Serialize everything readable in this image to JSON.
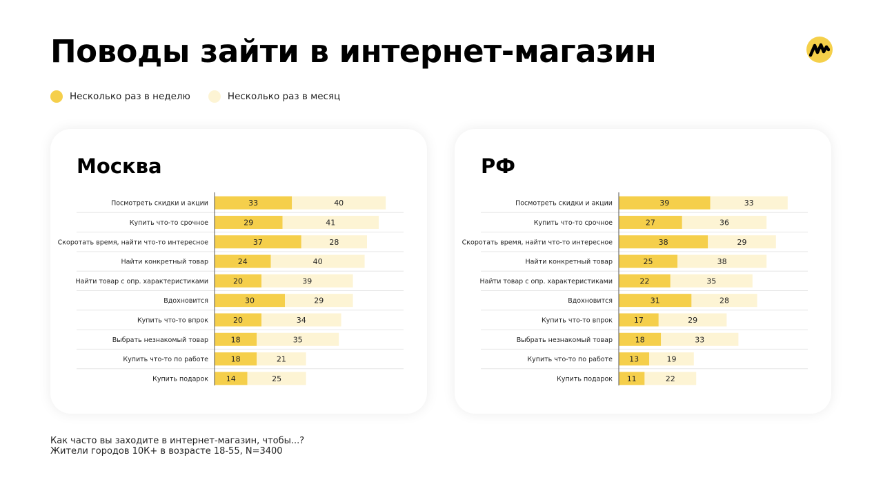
{
  "page": {
    "title": "Поводы зайти в интернет-магазин",
    "logo": "yandex-market-logo"
  },
  "colors": {
    "weekly": "#f5cf4b",
    "monthly": "#fdf4d4",
    "logo_bg": "#f5d04a"
  },
  "legend": [
    {
      "label": "Несколько раз в неделю",
      "color": "#f5cf4b"
    },
    {
      "label": "Несколько раз в месяц",
      "color": "#fdf4d4"
    }
  ],
  "footnote": {
    "line1": "Как часто вы заходите в интернет-магазин, чтобы...?",
    "line2": "Жители городов 10К+ в возрасте 18-55, N=3400"
  },
  "chart_data": [
    {
      "type": "bar",
      "orientation": "horizontal",
      "stacked": true,
      "title": "Москва",
      "unit": "%",
      "categories": [
        "Посмотреть скидки и акции",
        "Купить что-то срочное",
        "Скоротать время, найти что-то интересное",
        "Найти конкретный товар",
        "Найти товар с опр. характеристиками",
        "Вдохновится",
        "Купить что-то впрок",
        "Выбрать незнакомый товар",
        "Купить что-то по работе",
        "Купить подарок"
      ],
      "series": [
        {
          "name": "Несколько раз в неделю",
          "values": [
            33,
            29,
            37,
            24,
            20,
            30,
            20,
            18,
            18,
            14
          ]
        },
        {
          "name": "Несколько раз в месяц",
          "values": [
            40,
            41,
            28,
            40,
            39,
            29,
            34,
            35,
            21,
            25
          ]
        }
      ],
      "xlim": [
        0,
        80
      ],
      "grid": false,
      "legend_position": "top-left"
    },
    {
      "type": "bar",
      "orientation": "horizontal",
      "stacked": true,
      "title": "РФ",
      "unit": "%",
      "categories": [
        "Посмотреть скидки и акции",
        "Купить что-то срочное",
        "Скоротать время, найти что-то интересное",
        "Найти конкретный товар",
        "Найти товар с опр. характеристиками",
        "Вдохновится",
        "Купить что-то впрок",
        "Выбрать незнакомый товар",
        "Купить что-то по работе",
        "Купить подарок"
      ],
      "series": [
        {
          "name": "Несколько раз в неделю",
          "values": [
            39,
            27,
            38,
            25,
            22,
            31,
            17,
            18,
            13,
            11
          ]
        },
        {
          "name": "Несколько раз в месяц",
          "values": [
            33,
            36,
            29,
            38,
            35,
            28,
            29,
            33,
            19,
            22
          ]
        }
      ],
      "xlim": [
        0,
        80
      ],
      "grid": false,
      "legend_position": "top-left"
    }
  ]
}
